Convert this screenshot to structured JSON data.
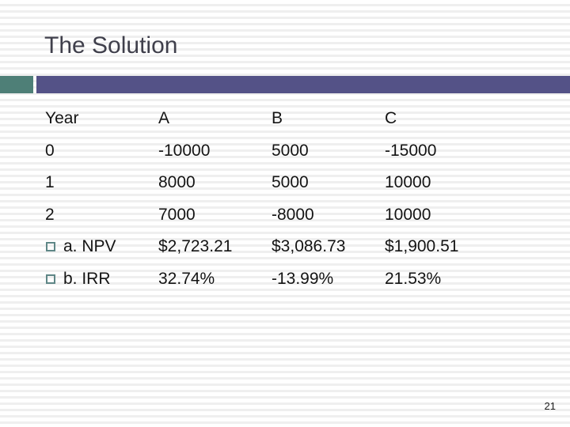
{
  "title": "The Solution",
  "page_number": "21",
  "colors": {
    "teal_accent": "#4e7f77",
    "purple_accent": "#545287",
    "title_text": "#3f3f4b",
    "bullet_border": "#5f8787"
  },
  "table": {
    "headers": [
      "Year",
      "A",
      "B",
      "C"
    ],
    "rows": [
      {
        "cells": [
          "0",
          "-10000",
          "5000",
          "-15000"
        ],
        "bulleted": false
      },
      {
        "cells": [
          "1",
          "8000",
          "5000",
          "10000"
        ],
        "bulleted": false
      },
      {
        "cells": [
          "2",
          "7000",
          "-8000",
          "10000"
        ],
        "bulleted": false
      },
      {
        "cells": [
          "a. NPV",
          "$2,723.21",
          "$3,086.73",
          "$1,900.51"
        ],
        "bulleted": true
      },
      {
        "cells": [
          "b. IRR",
          "32.74%",
          "-13.99%",
          "21.53%"
        ],
        "bulleted": true
      }
    ]
  }
}
